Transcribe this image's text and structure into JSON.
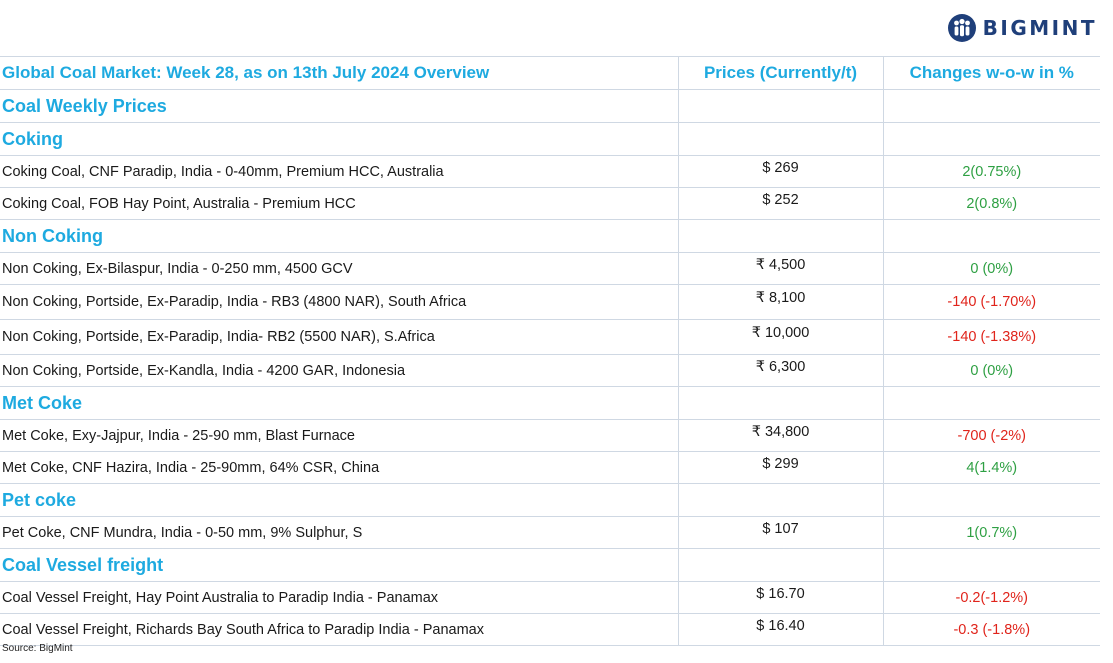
{
  "brand": {
    "name": "BIGMINT",
    "logo_icon": "bigmint-people-icon",
    "color": "#1f3f7a"
  },
  "accent_color": "#1eaae0",
  "header": {
    "title": "Global Coal Market: Week 28, as on 13th July 2024 Overview",
    "col_price": "Prices (Currently/t)",
    "col_change": "Changes w-o-w in %"
  },
  "sections": [
    {
      "title": "Coal Weekly Prices",
      "rows": []
    },
    {
      "title": "Coking",
      "rows": [
        {
          "item": "Coking Coal, CNF Paradip, India - 0-40mm, Premium HCC, Australia",
          "price": "$ 269",
          "change": "2(0.75%)",
          "trend": "up"
        },
        {
          "item": "Coking Coal, FOB Hay Point, Australia - Premium HCC",
          "price": "$ 252",
          "change": "2(0.8%)",
          "trend": "up"
        }
      ]
    },
    {
      "title": "Non Coking",
      "rows": [
        {
          "item": "Non Coking, Ex-Bilaspur, India - 0-250 mm, 4500 GCV",
          "price": "₹ 4,500",
          "change": "0 (0%)",
          "trend": "flat"
        },
        {
          "item": "Non Coking, Portside, Ex-Paradip, India - RB3 (4800 NAR), South Africa",
          "price": "₹ 8,100",
          "change": "-140 (-1.70%)",
          "trend": "down"
        },
        {
          "item": "Non Coking, Portside, Ex-Paradip, India- RB2 (5500 NAR), S.Africa",
          "price": "₹ 10,000",
          "change": "-140 (-1.38%)",
          "trend": "down"
        },
        {
          "item": "Non Coking, Portside, Ex-Kandla, India - 4200 GAR, Indonesia",
          "price": "₹ 6,300",
          "change": "0 (0%)",
          "trend": "flat"
        }
      ]
    },
    {
      "title": "Met Coke",
      "rows": [
        {
          "item": "Met Coke, Exy-Jajpur, India - 25-90 mm, Blast Furnace",
          "price": "₹ 34,800",
          "change": "-700 (-2%)",
          "trend": "down"
        },
        {
          "item": "Met Coke, CNF Hazira, India - 25-90mm, 64% CSR, China",
          "price": "$ 299",
          "change": "4(1.4%)",
          "trend": "up"
        }
      ]
    },
    {
      "title": "Pet coke",
      "rows": [
        {
          "item": "Pet Coke, CNF Mundra, India - 0-50 mm, 9% Sulphur, S",
          "price": "$ 107",
          "change": "1(0.7%)",
          "trend": "up"
        }
      ]
    },
    {
      "title": "Coal Vessel freight",
      "rows": [
        {
          "item": "Coal Vessel Freight, Hay Point Australia to Paradip India - Panamax",
          "price": "$ 16.70",
          "change": "-0.2(-1.2%)",
          "trend": "down"
        },
        {
          "item": "Coal Vessel Freight, Richards Bay South Africa to Paradip India - Panamax",
          "price": "$ 16.40",
          "change": "-0.3 (-1.8%)",
          "trend": "down"
        }
      ]
    }
  ],
  "source": "Source: BigMint"
}
